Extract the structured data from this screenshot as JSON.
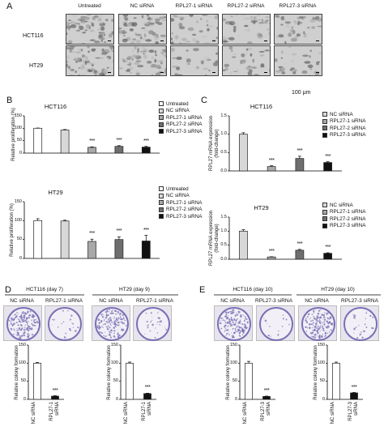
{
  "panel_A": {
    "letter": "A",
    "columns": [
      "Untreated",
      "NC siRNA",
      "RPL27-1 siRNA",
      "RPL27-2 siRNA",
      "RPL27-3 siRNA"
    ],
    "rows": [
      "HCT116",
      "HT29"
    ],
    "scale_label": "100 μm"
  },
  "panel_B": {
    "letter": "B"
  },
  "panel_C": {
    "letter": "C"
  },
  "panel_D": {
    "letter": "D",
    "groups": [
      "HCT116 (day 7)",
      "HT29 (day 9)"
    ],
    "plate_labels": [
      "NC siRNA",
      "RPL27-1 siRNA",
      "NC siRNA",
      "RPL27-1 siRNA"
    ]
  },
  "panel_E": {
    "letter": "E",
    "groups": [
      "HCT116 (day 10)",
      "HT29 (day 10)"
    ],
    "plate_labels": [
      "NC siRNA",
      "RPL27-3 siRNA",
      "NC siRNA",
      "RPL27-3 siRNA"
    ]
  },
  "colors": {
    "Untreated": "#ffffff",
    "NC siRNA": "#d8d8d8",
    "RPL27-1 siRNA": "#a8a8a8",
    "RPL27-2 siRNA": "#6e6e6e",
    "RPL27-3 siRNA": "#111111",
    "stain": "#7a6fb5"
  },
  "chart_data": [
    {
      "id": "B1",
      "type": "bar",
      "title": "HCT116",
      "ylabel": "Relative proliferation (%)",
      "ylim": [
        0,
        150
      ],
      "yticks": [
        0,
        50,
        100,
        150
      ],
      "categories": [
        "Untreated",
        "NC siRNA",
        "RPL27-1 siRNA",
        "RPL27-2 siRNA",
        "RPL27-3 siRNA"
      ],
      "values": [
        100,
        93,
        23,
        27,
        24
      ],
      "errors": [
        1,
        2,
        2,
        3,
        3
      ],
      "significance": [
        "",
        "",
        "***",
        "***",
        "***"
      ],
      "legend": [
        "Untreated",
        "NC siRNA",
        "RPL27-1 siRNA",
        "RPL27-2 siRNA",
        "RPL27-3 siRNA"
      ]
    },
    {
      "id": "B2",
      "type": "bar",
      "title": "HT29",
      "ylabel": "Relative proliferation (%)",
      "ylim": [
        0,
        150
      ],
      "yticks": [
        0,
        50,
        100,
        150
      ],
      "categories": [
        "Untreated",
        "NC siRNA",
        "RPL27-1 siRNA",
        "RPL27-2 siRNA",
        "RPL27-3 siRNA"
      ],
      "values": [
        100,
        99,
        45,
        50,
        46
      ],
      "errors": [
        5,
        2,
        6,
        7,
        15
      ],
      "significance": [
        "",
        "",
        "***",
        "***",
        "***"
      ],
      "legend": [
        "Untreated",
        "NC siRNA",
        "RPL27-1 siRNA",
        "RPL27-2 siRNA",
        "RPL27-3 siRNA"
      ]
    },
    {
      "id": "C1",
      "type": "bar",
      "title": "HCT116",
      "ylabel": "RPL27 mRNA expression (fold-change)",
      "ylim": [
        0,
        1.5
      ],
      "yticks": [
        0.0,
        0.5,
        1.0,
        1.5
      ],
      "categories": [
        "NC siRNA",
        "RPL27-1 siRNA",
        "RPL27-2 siRNA",
        "RPL27-3 siRNA"
      ],
      "values": [
        1.0,
        0.12,
        0.34,
        0.23
      ],
      "errors": [
        0.04,
        0.02,
        0.06,
        0.02
      ],
      "significance": [
        "",
        "***",
        "***",
        "***"
      ],
      "legend": [
        "NC siRNA",
        "RPL27-1 siRNA",
        "RPL27-2 siRNA",
        "RPL27-3 siRNA"
      ]
    },
    {
      "id": "C2",
      "type": "bar",
      "title": "HT29",
      "ylabel": "RPL27 mRNA expression (fold-change)",
      "ylim": [
        0,
        1.5
      ],
      "yticks": [
        0.0,
        0.5,
        1.0,
        1.5
      ],
      "categories": [
        "NC siRNA",
        "RPL27-1 siRNA",
        "RPL27-2 siRNA",
        "RPL27-3 siRNA"
      ],
      "values": [
        1.0,
        0.08,
        0.32,
        0.21
      ],
      "errors": [
        0.05,
        0.01,
        0.03,
        0.02
      ],
      "significance": [
        "",
        "***",
        "***",
        "***"
      ],
      "legend": [
        "NC siRNA",
        "RPL27-1 siRNA",
        "RPL27-2 siRNA",
        "RPL27-3 siRNA"
      ]
    },
    {
      "id": "D1",
      "type": "bar",
      "ylabel": "Relative colony formation",
      "ylim": [
        0,
        150
      ],
      "yticks": [
        0,
        50,
        100,
        150
      ],
      "categories": [
        "NC siRNA",
        "RPL27-1 siRNA"
      ],
      "values": [
        100,
        9
      ],
      "errors": [
        2,
        1
      ],
      "significance": [
        "",
        "***"
      ]
    },
    {
      "id": "D2",
      "type": "bar",
      "ylabel": "Relative colony formation",
      "ylim": [
        0,
        150
      ],
      "yticks": [
        0,
        50,
        100,
        150
      ],
      "categories": [
        "NC siRNA",
        "RPL27-1 siRNA"
      ],
      "values": [
        100,
        16
      ],
      "errors": [
        3,
        1
      ],
      "significance": [
        "",
        "***"
      ]
    },
    {
      "id": "E1",
      "type": "bar",
      "ylabel": "Relative colony formation",
      "ylim": [
        0,
        150
      ],
      "yticks": [
        0,
        50,
        100,
        150
      ],
      "categories": [
        "NC siRNA",
        "RPL27-3 siRNA"
      ],
      "values": [
        100,
        8
      ],
      "errors": [
        5,
        1
      ],
      "significance": [
        "",
        "***"
      ]
    },
    {
      "id": "E2",
      "type": "bar",
      "ylabel": "Relative colony formation",
      "ylim": [
        0,
        150
      ],
      "yticks": [
        0,
        50,
        100,
        150
      ],
      "categories": [
        "NC siRNA",
        "RPL27-3 siRNA"
      ],
      "values": [
        100,
        18
      ],
      "errors": [
        3,
        1
      ],
      "significance": [
        "",
        "***"
      ]
    }
  ]
}
